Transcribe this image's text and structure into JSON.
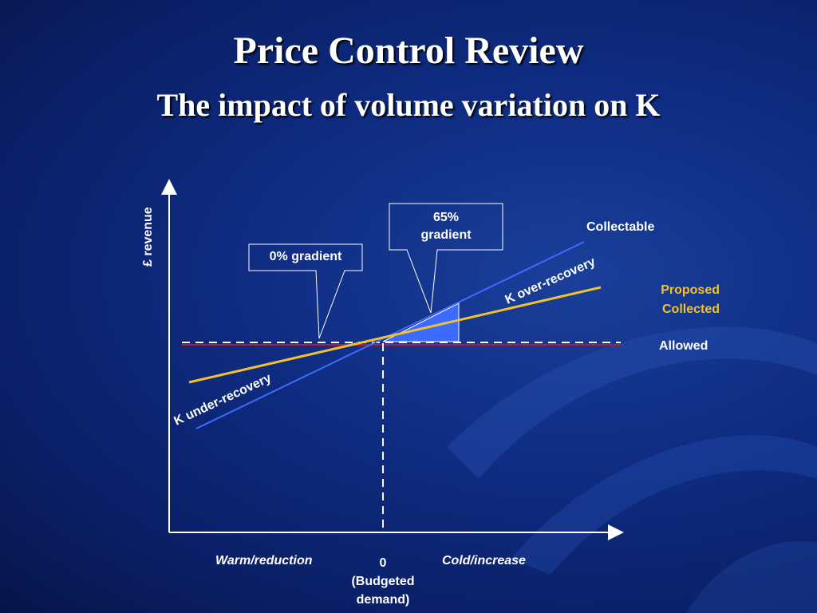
{
  "title": "Price Control Review",
  "subtitle": "The impact of volume variation on K",
  "diagram": {
    "y_axis_label": "£ revenue",
    "x_labels": {
      "left": "Warm/reduction",
      "center_value": "0",
      "center_note_1": "(Budgeted",
      "center_note_2": "demand)",
      "right": "Cold/increase"
    },
    "lines": {
      "collectable": "Collectable",
      "proposed_1": "Proposed",
      "proposed_2": "Collected",
      "allowed": "Allowed"
    },
    "annotations": {
      "over": "K over-recovery",
      "under": "K under-recovery",
      "callout_zero_gradient": "0% gradient",
      "callout_65_line1": "65%",
      "callout_65_line2": "gradient"
    },
    "colors": {
      "collectable_line": "#3d6bff",
      "proposed_line": "#f2c12e",
      "allowed_line": "#c0182a",
      "proposed_label": "#f2c12e",
      "shaded_area": "#3d6bff"
    }
  }
}
